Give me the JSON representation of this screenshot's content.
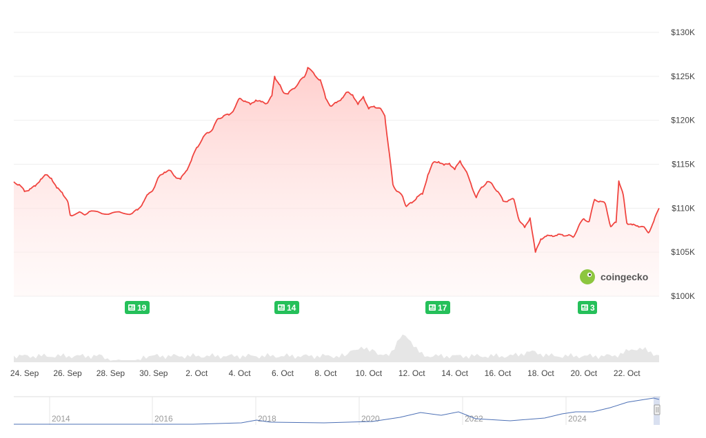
{
  "brand": {
    "name": "coingecko",
    "logo_color": "#8DC63F"
  },
  "colors": {
    "line": "#F0443F",
    "fill_top": "#FFC9C7",
    "fill_bottom": "#FFF2F1",
    "grid": "#EEEEEE",
    "volume": "#E6E6E6",
    "news_badge": "#25C05A",
    "nav_line": "#4B6FB5",
    "nav_text": "#999999",
    "axis_text": "#444444"
  },
  "news_badges": [
    {
      "label": "19",
      "icon": "newspaper-icon"
    },
    {
      "label": "14",
      "icon": "newspaper-icon"
    },
    {
      "label": "17",
      "icon": "newspaper-icon"
    },
    {
      "label": "3",
      "icon": "newspaper-icon"
    }
  ],
  "navigator": {
    "years": [
      "2014",
      "2016",
      "2018",
      "2020",
      "2022",
      "2024"
    ]
  },
  "chart_data": {
    "type": "line",
    "title": "",
    "xlabel": "",
    "ylabel": "",
    "y_axis_position": "right",
    "ylim": [
      100000,
      130000
    ],
    "y_ticks": [
      100000,
      105000,
      110000,
      115000,
      120000,
      125000,
      130000
    ],
    "y_tick_labels": [
      "$100K",
      "$105K",
      "$110K",
      "$115K",
      "$120K",
      "$125K",
      "$130K"
    ],
    "x_tick_labels": [
      "24. Sep",
      "26. Sep",
      "28. Sep",
      "30. Sep",
      "2. Oct",
      "4. Oct",
      "6. Oct",
      "8. Oct",
      "10. Oct",
      "12. Oct",
      "14. Oct",
      "16. Oct",
      "18. Oct",
      "20. Oct",
      "22. Oct"
    ],
    "x_tick_dates": [
      "2025-09-24",
      "2025-09-26",
      "2025-09-28",
      "2025-09-30",
      "2025-10-02",
      "2025-10-04",
      "2025-10-06",
      "2025-10-08",
      "2025-10-10",
      "2025-10-12",
      "2025-10-14",
      "2025-10-16",
      "2025-10-18",
      "2025-10-20",
      "2025-10-22"
    ],
    "grid": true,
    "series": [
      {
        "values": [
          [
            "2025-09-23 12:00",
            113000
          ],
          [
            "2025-09-23 18:00",
            112700
          ],
          [
            "2025-09-24 00:00",
            111900
          ],
          [
            "2025-09-24 06:00",
            112200
          ],
          [
            "2025-09-24 12:00",
            112500
          ],
          [
            "2025-09-24 18:00",
            113300
          ],
          [
            "2025-09-25 00:00",
            113800
          ],
          [
            "2025-09-25 06:00",
            113400
          ],
          [
            "2025-09-25 12:00",
            112300
          ],
          [
            "2025-09-25 18:00",
            111800
          ],
          [
            "2025-09-26 00:00",
            110800
          ],
          [
            "2025-09-26 03:00",
            109200
          ],
          [
            "2025-09-26 12:00",
            109500
          ],
          [
            "2025-09-26 18:00",
            109300
          ],
          [
            "2025-09-27 00:00",
            109600
          ],
          [
            "2025-09-27 12:00",
            109500
          ],
          [
            "2025-09-28 00:00",
            109400
          ],
          [
            "2025-09-28 12:00",
            109500
          ],
          [
            "2025-09-29 00:00",
            109400
          ],
          [
            "2025-09-29 06:00",
            109800
          ],
          [
            "2025-09-29 12:00",
            110600
          ],
          [
            "2025-09-29 18:00",
            111600
          ],
          [
            "2025-09-30 00:00",
            112200
          ],
          [
            "2025-09-30 06:00",
            113600
          ],
          [
            "2025-09-30 12:00",
            114100
          ],
          [
            "2025-09-30 18:00",
            114300
          ],
          [
            "2025-10-01 00:00",
            113600
          ],
          [
            "2025-10-01 06:00",
            113300
          ],
          [
            "2025-10-01 12:00",
            114200
          ],
          [
            "2025-10-01 18:00",
            115400
          ],
          [
            "2025-10-02 00:00",
            116900
          ],
          [
            "2025-10-02 06:00",
            117800
          ],
          [
            "2025-10-02 12:00",
            118600
          ],
          [
            "2025-10-02 18:00",
            119000
          ],
          [
            "2025-10-03 00:00",
            120200
          ],
          [
            "2025-10-03 06:00",
            120500
          ],
          [
            "2025-10-03 12:00",
            120600
          ],
          [
            "2025-10-03 18:00",
            121300
          ],
          [
            "2025-10-04 00:00",
            122500
          ],
          [
            "2025-10-04 06:00",
            122200
          ],
          [
            "2025-10-04 12:00",
            121800
          ],
          [
            "2025-10-04 18:00",
            122300
          ],
          [
            "2025-10-05 00:00",
            122100
          ],
          [
            "2025-10-05 06:00",
            121900
          ],
          [
            "2025-10-05 12:00",
            122800
          ],
          [
            "2025-10-05 15:00",
            125000
          ],
          [
            "2025-10-05 20:00",
            124100
          ],
          [
            "2025-10-06 00:00",
            123300
          ],
          [
            "2025-10-06 06:00",
            123000
          ],
          [
            "2025-10-06 12:00",
            123600
          ],
          [
            "2025-10-06 18:00",
            124300
          ],
          [
            "2025-10-07 00:00",
            124900
          ],
          [
            "2025-10-07 04:00",
            126000
          ],
          [
            "2025-10-07 12:00",
            125100
          ],
          [
            "2025-10-07 18:00",
            124600
          ],
          [
            "2025-10-08 00:00",
            122500
          ],
          [
            "2025-10-08 06:00",
            121600
          ],
          [
            "2025-10-08 12:00",
            122000
          ],
          [
            "2025-10-08 18:00",
            122500
          ],
          [
            "2025-10-09 00:00",
            123200
          ],
          [
            "2025-10-09 06:00",
            122900
          ],
          [
            "2025-10-09 12:00",
            121800
          ],
          [
            "2025-10-09 18:00",
            122700
          ],
          [
            "2025-10-10 00:00",
            121300
          ],
          [
            "2025-10-10 06:00",
            121600
          ],
          [
            "2025-10-10 12:00",
            121400
          ],
          [
            "2025-10-10 18:00",
            120500
          ],
          [
            "2025-10-10 22:00",
            117000
          ],
          [
            "2025-10-11 03:00",
            112700
          ],
          [
            "2025-10-11 08:00",
            111900
          ],
          [
            "2025-10-11 14:00",
            111300
          ],
          [
            "2025-10-11 18:00",
            110200
          ],
          [
            "2025-10-12 00:00",
            110600
          ],
          [
            "2025-10-12 06:00",
            111300
          ],
          [
            "2025-10-12 12:00",
            111600
          ],
          [
            "2025-10-12 18:00",
            113800
          ],
          [
            "2025-10-13 00:00",
            115200
          ],
          [
            "2025-10-13 06:00",
            115300
          ],
          [
            "2025-10-13 12:00",
            114900
          ],
          [
            "2025-10-13 18:00",
            115100
          ],
          [
            "2025-10-14 00:00",
            114400
          ],
          [
            "2025-10-14 06:00",
            115400
          ],
          [
            "2025-10-14 12:00",
            114300
          ],
          [
            "2025-10-14 18:00",
            112800
          ],
          [
            "2025-10-15 00:00",
            111200
          ],
          [
            "2025-10-15 06:00",
            112400
          ],
          [
            "2025-10-15 12:00",
            113000
          ],
          [
            "2025-10-15 18:00",
            112700
          ],
          [
            "2025-10-16 00:00",
            111900
          ],
          [
            "2025-10-16 06:00",
            110800
          ],
          [
            "2025-10-16 12:00",
            110900
          ],
          [
            "2025-10-16 18:00",
            111000
          ],
          [
            "2025-10-17 00:00",
            108600
          ],
          [
            "2025-10-17 06:00",
            107800
          ],
          [
            "2025-10-17 12:00",
            108900
          ],
          [
            "2025-10-17 18:00",
            105000
          ],
          [
            "2025-10-18 00:00",
            106500
          ],
          [
            "2025-10-18 06:00",
            106800
          ],
          [
            "2025-10-18 12:00",
            106900
          ],
          [
            "2025-10-18 18:00",
            106900
          ],
          [
            "2025-10-19 00:00",
            107000
          ],
          [
            "2025-10-19 06:00",
            106900
          ],
          [
            "2025-10-19 12:00",
            106700
          ],
          [
            "2025-10-19 18:00",
            107900
          ],
          [
            "2025-10-20 00:00",
            108800
          ],
          [
            "2025-10-20 06:00",
            108500
          ],
          [
            "2025-10-20 12:00",
            111000
          ],
          [
            "2025-10-20 18:00",
            110800
          ],
          [
            "2025-10-21 00:00",
            110500
          ],
          [
            "2025-10-21 06:00",
            107900
          ],
          [
            "2025-10-21 12:00",
            108400
          ],
          [
            "2025-10-21 15:00",
            113100
          ],
          [
            "2025-10-21 20:00",
            111500
          ],
          [
            "2025-10-22 00:00",
            108300
          ],
          [
            "2025-10-22 06:00",
            108100
          ],
          [
            "2025-10-22 12:00",
            108000
          ],
          [
            "2025-10-22 18:00",
            107900
          ],
          [
            "2025-10-23 00:00",
            107200
          ],
          [
            "2025-10-23 06:00",
            108500
          ],
          [
            "2025-10-23 12:00",
            110000
          ]
        ]
      }
    ]
  }
}
